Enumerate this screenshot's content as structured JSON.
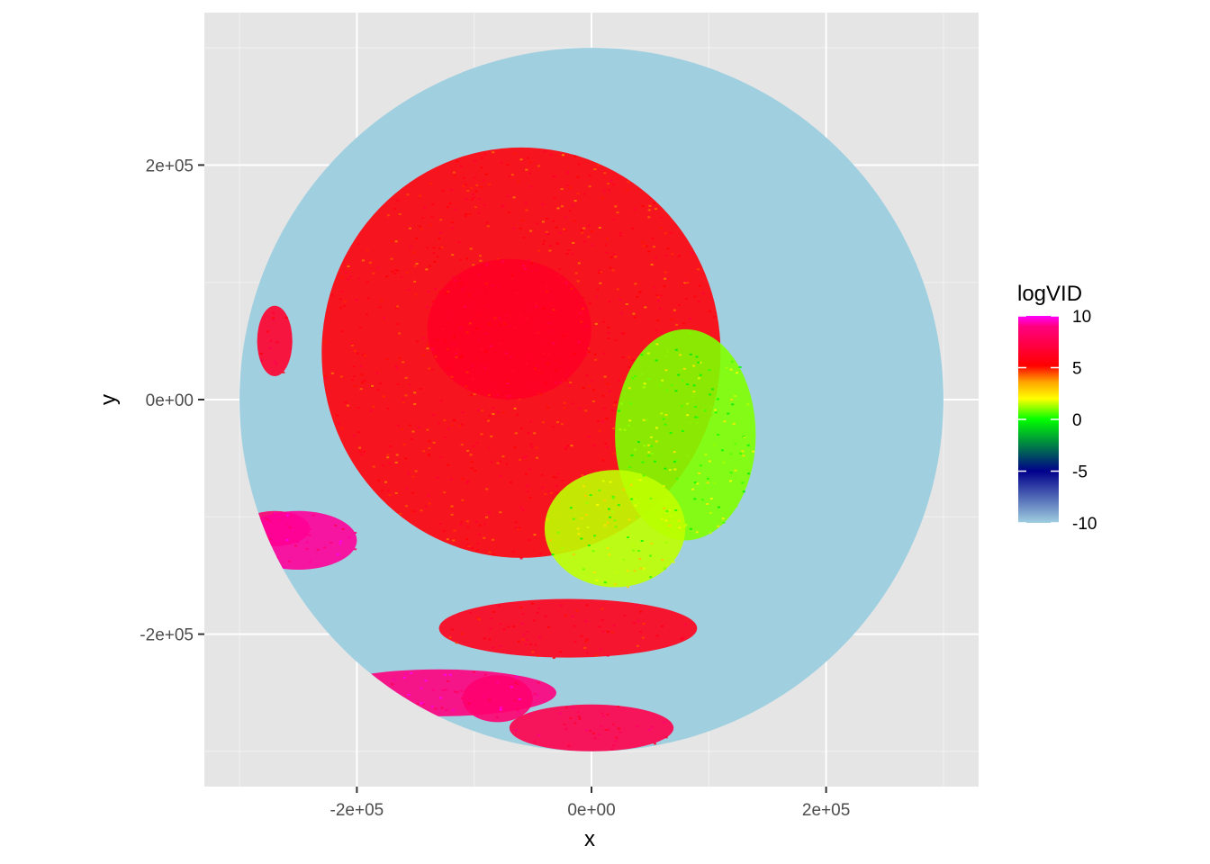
{
  "chart_data": {
    "type": "heatmap",
    "title": "",
    "xlabel": "x",
    "ylabel": "y",
    "xlim": [
      -330000,
      330000
    ],
    "ylim": [
      -330000,
      330000
    ],
    "x_ticks": [
      {
        "value": -200000,
        "label": "-2e+05"
      },
      {
        "value": 0,
        "label": "0e+00"
      },
      {
        "value": 200000,
        "label": "2e+05"
      }
    ],
    "y_ticks": [
      {
        "value": 200000,
        "label": "2e+05"
      },
      {
        "value": 0,
        "label": "0e+00"
      },
      {
        "value": -200000,
        "label": "-2e+05"
      }
    ],
    "minor_breaks": [
      -300000,
      -100000,
      100000,
      300000
    ],
    "grid": true,
    "panel_background": "#e5e5e5",
    "radar_range": 300000,
    "background_value_color": "#a0cfe0",
    "legend": {
      "title": "logVID",
      "position": "right",
      "limits": [
        -10,
        10
      ],
      "ticks": [
        {
          "value": 10,
          "label": "10"
        },
        {
          "value": 5,
          "label": "5"
        },
        {
          "value": 0,
          "label": "0"
        },
        {
          "value": -5,
          "label": "-5"
        },
        {
          "value": -10,
          "label": "-10"
        }
      ],
      "colors": [
        "#a0cfe0",
        "#00008b",
        "#00ff00",
        "#ffff00",
        "#ffa500",
        "#ff0000",
        "#ff00ff"
      ]
    },
    "regions": [
      {
        "name": "main-echo",
        "x": -60000,
        "y": 40000,
        "rx": 170000,
        "ry": 175000,
        "value": 5.5
      },
      {
        "name": "north-west-core",
        "x": -70000,
        "y": 60000,
        "rx": 70000,
        "ry": 60000,
        "value": 6.3
      },
      {
        "name": "east-yellow-fringe",
        "x": 80000,
        "y": -30000,
        "rx": 60000,
        "ry": 90000,
        "value": 1.0
      },
      {
        "name": "south-east-yellow",
        "x": 20000,
        "y": -110000,
        "rx": 60000,
        "ry": 50000,
        "value": 1.5
      },
      {
        "name": "south-band",
        "x": -20000,
        "y": -195000,
        "rx": 110000,
        "ry": 25000,
        "value": 6.0
      },
      {
        "name": "south-blob",
        "x": 0,
        "y": -280000,
        "rx": 70000,
        "ry": 20000,
        "value": 7.5
      },
      {
        "name": "southwest-streak-1",
        "x": -130000,
        "y": -250000,
        "rx": 100000,
        "ry": 20000,
        "value": 9.0
      },
      {
        "name": "southwest-streak-2",
        "x": -80000,
        "y": -255000,
        "rx": 30000,
        "ry": 20000,
        "value": 8.5
      },
      {
        "name": "west-patch-1",
        "x": -270000,
        "y": -110000,
        "rx": 30000,
        "ry": 15000,
        "value": 8.5
      },
      {
        "name": "west-patch-2",
        "x": -250000,
        "y": -120000,
        "rx": 50000,
        "ry": 25000,
        "value": 9.2
      },
      {
        "name": "west-patch-3",
        "x": -270000,
        "y": 50000,
        "rx": 15000,
        "ry": 30000,
        "value": 6.5
      }
    ]
  }
}
